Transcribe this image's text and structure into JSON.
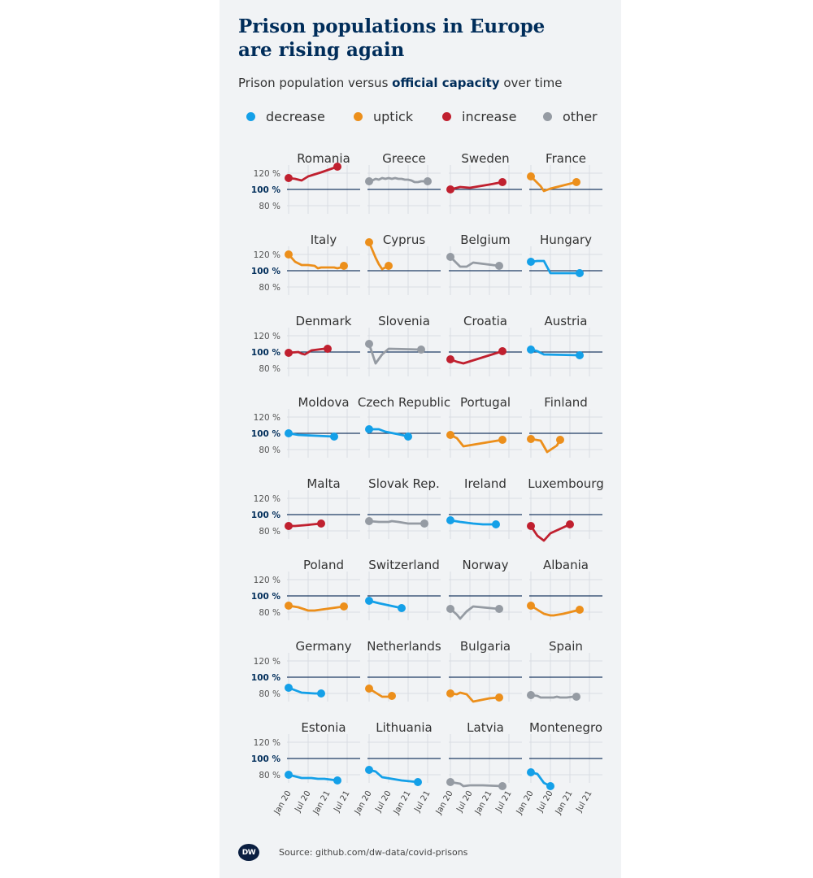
{
  "header": {
    "title_line1": "Prison populations in Europe",
    "title_line2": "are rising again",
    "subtitle_pre": "Prison population versus ",
    "subtitle_bold": "official capacity",
    "subtitle_post": " over time"
  },
  "legend": [
    {
      "label": "decrease",
      "color": "#14a0e8"
    },
    {
      "label": "uptick",
      "color": "#ec8f1b"
    },
    {
      "label": "increase",
      "color": "#c0202f"
    },
    {
      "label": "other",
      "color": "#959ba3"
    }
  ],
  "footer": {
    "logo": "DW",
    "source": "Source: github.com/dw-data/covid-prisons"
  },
  "chart_data": {
    "type": "line",
    "layout": "small multiples",
    "y_ticks": [
      "120 %",
      "100 %",
      "80 %"
    ],
    "y_tick_values": [
      120,
      100,
      80
    ],
    "ylim": [
      70,
      130
    ],
    "reference_line": 100,
    "x_ticks": [
      "Jan 20",
      "Jul 20",
      "Jan 21",
      "Jul 21"
    ],
    "x_tick_values": [
      0,
      6,
      12,
      18
    ],
    "xlim": [
      0,
      19
    ],
    "panels": [
      {
        "name": "Romania",
        "category": "increase",
        "points": [
          [
            0,
            114
          ],
          [
            2,
            113
          ],
          [
            4,
            111
          ],
          [
            6,
            116
          ],
          [
            10,
            121
          ],
          [
            15,
            128
          ]
        ]
      },
      {
        "name": "Greece",
        "category": "other",
        "points": [
          [
            0,
            110
          ],
          [
            1,
            111
          ],
          [
            2,
            113
          ],
          [
            3,
            112
          ],
          [
            4,
            114
          ],
          [
            5,
            113
          ],
          [
            6,
            114
          ],
          [
            7,
            113
          ],
          [
            8,
            114
          ],
          [
            9,
            113
          ],
          [
            10,
            113
          ],
          [
            11,
            112
          ],
          [
            12,
            112
          ],
          [
            13,
            111
          ],
          [
            14,
            109
          ],
          [
            15,
            109
          ],
          [
            16,
            110
          ],
          [
            17,
            110
          ],
          [
            18,
            110
          ]
        ]
      },
      {
        "name": "Sweden",
        "category": "increase",
        "points": [
          [
            0,
            100
          ],
          [
            3,
            103
          ],
          [
            6,
            102
          ],
          [
            12,
            106
          ],
          [
            16,
            109
          ]
        ]
      },
      {
        "name": "France",
        "category": "uptick",
        "points": [
          [
            0,
            116
          ],
          [
            3,
            104
          ],
          [
            4,
            98
          ],
          [
            6,
            101
          ],
          [
            10,
            105
          ],
          [
            14,
            109
          ]
        ]
      },
      {
        "name": "Italy",
        "category": "uptick",
        "points": [
          [
            0,
            120
          ],
          [
            2,
            111
          ],
          [
            4,
            107
          ],
          [
            6,
            107
          ],
          [
            8,
            106
          ],
          [
            9,
            103
          ],
          [
            10,
            104
          ],
          [
            12,
            104
          ],
          [
            14,
            104
          ],
          [
            15,
            103
          ],
          [
            16,
            104
          ],
          [
            17,
            106
          ]
        ]
      },
      {
        "name": "Cyprus",
        "category": "uptick",
        "points": [
          [
            0,
            135
          ],
          [
            2,
            116
          ],
          [
            3,
            108
          ],
          [
            4,
            102
          ],
          [
            5,
            104
          ],
          [
            6,
            106
          ]
        ]
      },
      {
        "name": "Belgium",
        "category": "other",
        "points": [
          [
            0,
            117
          ],
          [
            3,
            105
          ],
          [
            5,
            105
          ],
          [
            7,
            110
          ],
          [
            11,
            108
          ],
          [
            15,
            106
          ]
        ]
      },
      {
        "name": "Hungary",
        "category": "decrease",
        "points": [
          [
            0,
            111
          ],
          [
            2,
            112
          ],
          [
            4,
            112
          ],
          [
            6,
            97
          ],
          [
            10,
            97
          ],
          [
            15,
            97
          ]
        ]
      },
      {
        "name": "Denmark",
        "category": "increase",
        "points": [
          [
            0,
            99
          ],
          [
            3,
            100
          ],
          [
            4,
            98
          ],
          [
            5,
            97
          ],
          [
            7,
            102
          ],
          [
            11,
            104
          ],
          [
            12,
            104
          ]
        ]
      },
      {
        "name": "Slovenia",
        "category": "other",
        "points": [
          [
            0,
            110
          ],
          [
            2,
            86
          ],
          [
            4,
            97
          ],
          [
            6,
            104
          ],
          [
            16,
            103
          ]
        ]
      },
      {
        "name": "Croatia",
        "category": "increase",
        "points": [
          [
            0,
            91
          ],
          [
            2,
            88
          ],
          [
            4,
            86
          ],
          [
            16,
            101
          ]
        ]
      },
      {
        "name": "Austria",
        "category": "decrease",
        "points": [
          [
            0,
            103
          ],
          [
            2,
            101
          ],
          [
            4,
            97
          ],
          [
            15,
            96
          ]
        ]
      },
      {
        "name": "Moldova",
        "category": "decrease",
        "points": [
          [
            0,
            100
          ],
          [
            3,
            98
          ],
          [
            14,
            96
          ]
        ]
      },
      {
        "name": "Czech Republic",
        "category": "decrease",
        "points": [
          [
            0,
            105
          ],
          [
            3,
            105
          ],
          [
            5,
            102
          ],
          [
            10,
            98
          ],
          [
            12,
            96
          ]
        ]
      },
      {
        "name": "Portugal",
        "category": "uptick",
        "points": [
          [
            0,
            98
          ],
          [
            2,
            94
          ],
          [
            4,
            84
          ],
          [
            16,
            92
          ]
        ]
      },
      {
        "name": "Finland",
        "category": "uptick",
        "points": [
          [
            0,
            93
          ],
          [
            3,
            91
          ],
          [
            5,
            77
          ],
          [
            8,
            85
          ],
          [
            9,
            92
          ]
        ]
      },
      {
        "name": "Malta",
        "category": "increase",
        "points": [
          [
            0,
            86
          ],
          [
            2,
            86
          ],
          [
            5,
            87
          ],
          [
            10,
            89
          ]
        ]
      },
      {
        "name": "Slovak Rep.",
        "category": "other",
        "points": [
          [
            0,
            92
          ],
          [
            3,
            91
          ],
          [
            6,
            91
          ],
          [
            7,
            92
          ],
          [
            9,
            91
          ],
          [
            12,
            89
          ],
          [
            15,
            89
          ],
          [
            17,
            89
          ]
        ]
      },
      {
        "name": "Ireland",
        "category": "decrease",
        "points": [
          [
            0,
            93
          ],
          [
            3,
            91
          ],
          [
            7,
            89
          ],
          [
            10,
            88
          ],
          [
            14,
            88
          ]
        ]
      },
      {
        "name": "Luxembourg",
        "category": "increase",
        "points": [
          [
            0,
            86
          ],
          [
            2,
            74
          ],
          [
            4,
            68
          ],
          [
            6,
            77
          ],
          [
            12,
            88
          ]
        ]
      },
      {
        "name": "Poland",
        "category": "uptick",
        "points": [
          [
            0,
            88
          ],
          [
            3,
            86
          ],
          [
            6,
            82
          ],
          [
            8,
            82
          ],
          [
            17,
            87
          ]
        ]
      },
      {
        "name": "Switzerland",
        "category": "decrease",
        "points": [
          [
            0,
            94
          ],
          [
            3,
            91
          ],
          [
            10,
            85
          ]
        ]
      },
      {
        "name": "Norway",
        "category": "other",
        "points": [
          [
            0,
            84
          ],
          [
            2,
            77
          ],
          [
            3,
            72
          ],
          [
            5,
            81
          ],
          [
            7,
            87
          ],
          [
            15,
            84
          ]
        ]
      },
      {
        "name": "Albania",
        "category": "uptick",
        "points": [
          [
            0,
            88
          ],
          [
            2,
            83
          ],
          [
            4,
            78
          ],
          [
            6,
            76
          ],
          [
            7,
            76
          ],
          [
            10,
            78
          ],
          [
            15,
            83
          ]
        ]
      },
      {
        "name": "Germany",
        "category": "decrease",
        "points": [
          [
            0,
            87
          ],
          [
            2,
            84
          ],
          [
            4,
            81
          ],
          [
            8,
            80
          ],
          [
            10,
            80
          ]
        ]
      },
      {
        "name": "Netherlands",
        "category": "uptick",
        "points": [
          [
            0,
            86
          ],
          [
            2,
            81
          ],
          [
            4,
            76
          ],
          [
            6,
            76
          ],
          [
            7,
            77
          ]
        ]
      },
      {
        "name": "Bulgaria",
        "category": "uptick",
        "points": [
          [
            0,
            80
          ],
          [
            2,
            79
          ],
          [
            3,
            81
          ],
          [
            5,
            79
          ],
          [
            7,
            70
          ],
          [
            12,
            74
          ],
          [
            15,
            75
          ]
        ]
      },
      {
        "name": "Spain",
        "category": "other",
        "points": [
          [
            0,
            78
          ],
          [
            2,
            77
          ],
          [
            3,
            75
          ],
          [
            5,
            75
          ],
          [
            7,
            75
          ],
          [
            8,
            76
          ],
          [
            9,
            75
          ],
          [
            11,
            75
          ],
          [
            13,
            76
          ],
          [
            14,
            76
          ]
        ]
      },
      {
        "name": "Estonia",
        "category": "decrease",
        "points": [
          [
            0,
            80
          ],
          [
            2,
            78
          ],
          [
            4,
            76
          ],
          [
            7,
            76
          ],
          [
            9,
            75
          ],
          [
            11,
            75
          ],
          [
            15,
            73
          ]
        ]
      },
      {
        "name": "Lithuania",
        "category": "decrease",
        "points": [
          [
            0,
            86
          ],
          [
            2,
            84
          ],
          [
            4,
            77
          ],
          [
            10,
            73
          ],
          [
            15,
            71
          ]
        ]
      },
      {
        "name": "Latvia",
        "category": "other",
        "points": [
          [
            0,
            71
          ],
          [
            3,
            69
          ],
          [
            4,
            66
          ],
          [
            6,
            67
          ],
          [
            10,
            67
          ],
          [
            16,
            66
          ]
        ]
      },
      {
        "name": "Montenegro",
        "category": "decrease",
        "points": [
          [
            0,
            83
          ],
          [
            2,
            81
          ],
          [
            4,
            70
          ],
          [
            6,
            66
          ]
        ]
      }
    ]
  }
}
